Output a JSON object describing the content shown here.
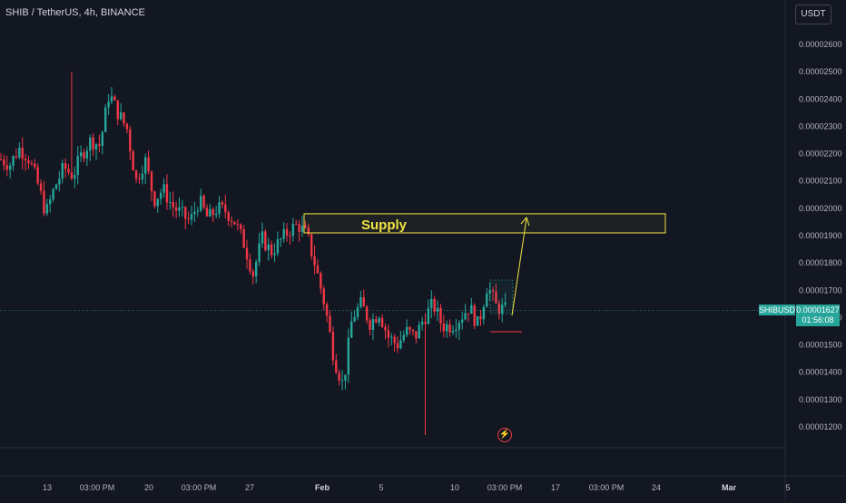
{
  "header": {
    "title": "SHIB / TetherUS, 4h, BINANCE"
  },
  "currency_button": {
    "label": "USDT"
  },
  "price_scale": {
    "ticks": [
      "0.00002600",
      "0.00002500",
      "0.00002400",
      "0.00002300",
      "0.00002200",
      "0.00002100",
      "0.00002000",
      "0.00001900",
      "0.00001800",
      "0.00001700",
      "0.00001600",
      "0.00001500",
      "0.00001400",
      "0.00001300",
      "0.00001200"
    ]
  },
  "time_axis": {
    "ticks": [
      "13",
      "03:00 PM",
      "20",
      "03:00 PM",
      "27",
      "Feb",
      "5",
      "10",
      "03:00 PM",
      "17",
      "03:00 PM",
      "24",
      "Mar",
      "5"
    ]
  },
  "last_price": {
    "symbol": "SHIBUSDT",
    "price": "0.00001627",
    "countdown": "01:56:08",
    "color": "#26a69a"
  },
  "annotations": {
    "supply_label": "Supply",
    "supply_zone": {
      "low": 1.91e-05,
      "high": 1.98e-05
    },
    "box_color": "#f0e442",
    "support_line_color": "#f23645"
  },
  "colors": {
    "up": "#26a69a",
    "down": "#f23645",
    "background": "#131722"
  },
  "chart_data": {
    "type": "candlestick",
    "symbol": "SHIBUSDT",
    "interval": "4h",
    "exchange": "BINANCE",
    "ylim": [
      1.15e-05,
      2.68e-05
    ],
    "close_series": [
      2.18e-05,
      2.16e-05,
      2.22e-05,
      2.19e-05,
      2.1e-05,
      1.98e-05,
      2.08e-05,
      2.15e-05,
      2.12e-05,
      2.2e-05,
      2.25e-05,
      2.23e-05,
      2.42e-05,
      2.35e-05,
      2.29e-05,
      2.1e-05,
      2.18e-05,
      2.03e-05,
      2.07e-05,
      2.01e-05,
      1.98e-05,
      1.95e-05,
      2.03e-05,
      1.96e-05,
      2e-05,
      1.99e-05,
      1.95e-05,
      1.87e-05,
      1.76e-05,
      1.89e-05,
      1.84e-05,
      1.88e-05,
      1.92e-05,
      1.94e-05,
      1.9e-05,
      1.78e-05,
      1.64e-05,
      1.45e-05,
      1.35e-05,
      1.6e-05,
      1.65e-05,
      1.58e-05,
      1.62e-05,
      1.53e-05,
      1.5e-05,
      1.55e-05,
      1.53e-05,
      1.6e-05,
      1.65e-05,
      1.57e-05,
      1.57e-05,
      1.6e-05,
      1.64e-05,
      1.57e-05,
      1.72e-05,
      1.64e-05,
      1.627e-05
    ],
    "description_points": {
      "high": 2.5e-05,
      "low": 1.17e-05,
      "last": 1.627e-05
    }
  }
}
